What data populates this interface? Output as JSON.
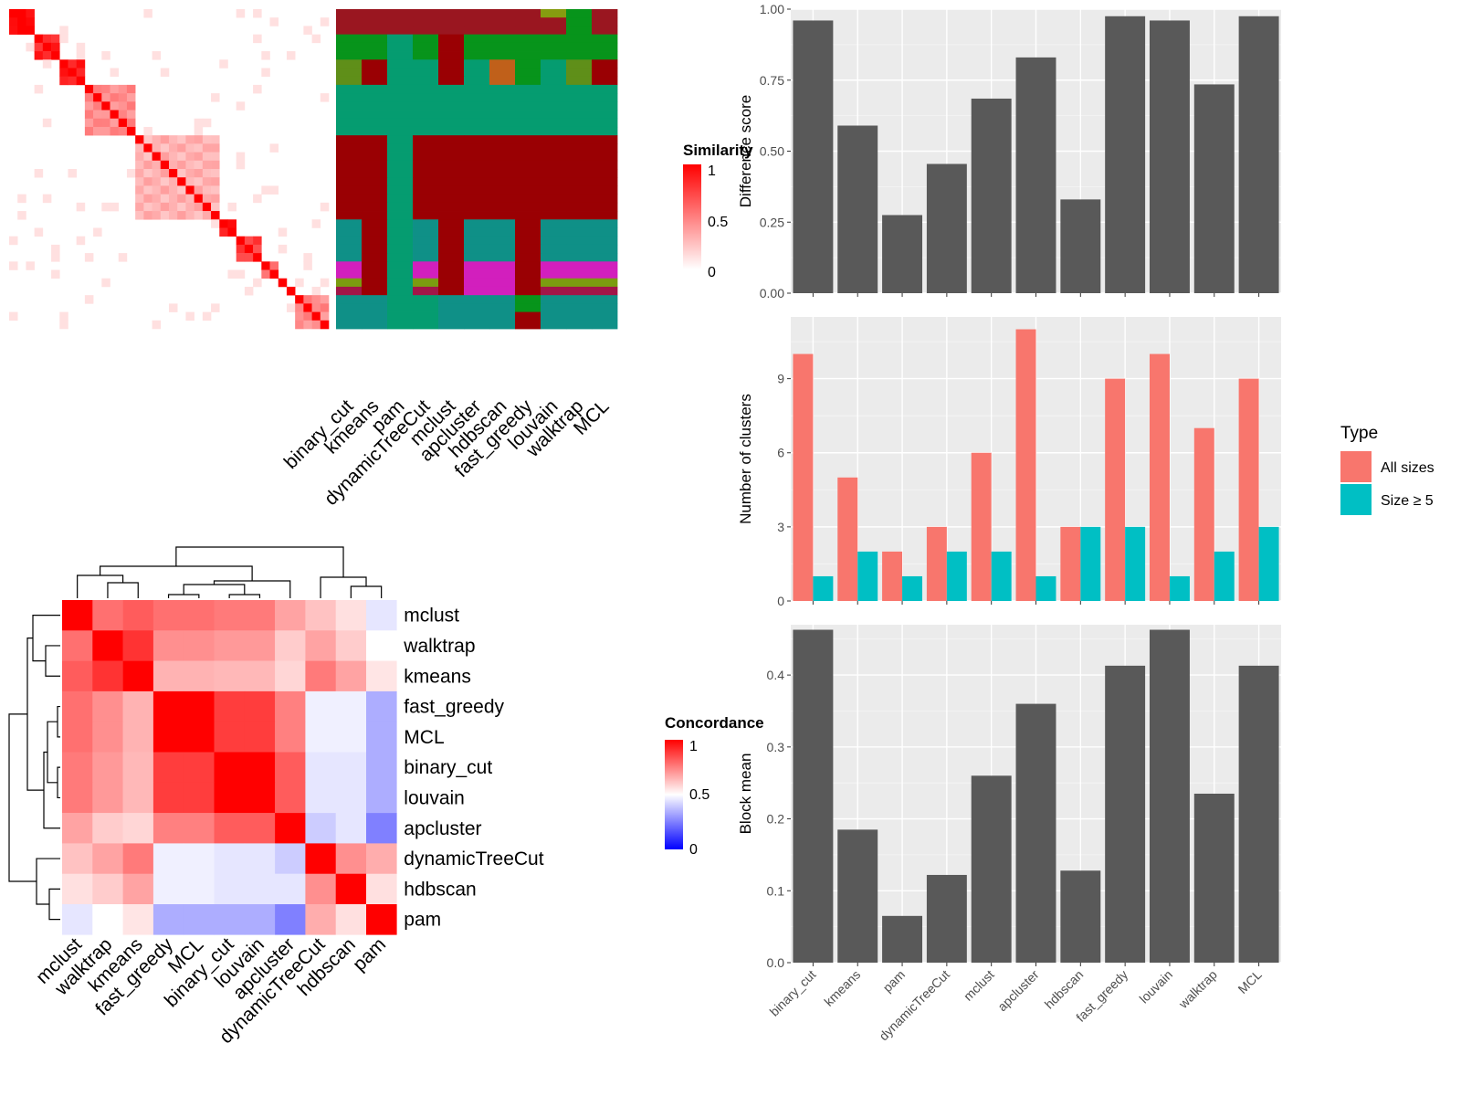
{
  "colors": {
    "panel_bg": "#ebebeb",
    "grid": "#ffffff",
    "bar_dark": "#595959",
    "all_sizes": "#f8766d",
    "size_ge5": "#00bfc4",
    "sim_high": "#ff0000",
    "sim_low": "#ffffff",
    "conc_high": "#ff0000",
    "conc_mid": "#ffffff",
    "conc_low": "#0000ff"
  },
  "chart_data": [
    {
      "id": "similarity_heatmap",
      "type": "heatmap",
      "columns": [
        "binary_cut",
        "kmeans",
        "pam",
        "dynamicTreeCut",
        "mclust",
        "apcluster",
        "hdbscan",
        "fast_greedy",
        "louvain",
        "walktrap",
        "MCL"
      ],
      "legend": {
        "title": "Similarity",
        "ticks": [
          "1",
          "0.5",
          "0"
        ],
        "range": [
          0,
          1
        ]
      },
      "block_sizes": [
        3,
        3,
        3,
        6,
        10,
        2,
        3,
        2,
        1,
        1,
        4
      ],
      "within_block_similarity": [
        0.95,
        0.85,
        0.9,
        0.45,
        0.3,
        0.9,
        0.75,
        0.5,
        1,
        1,
        0.45
      ]
    },
    {
      "id": "concordance_heatmap",
      "type": "heatmap",
      "rows": [
        "mclust",
        "walktrap",
        "kmeans",
        "fast_greedy",
        "MCL",
        "binary_cut",
        "louvain",
        "apcluster",
        "dynamicTreeCut",
        "hdbscan",
        "pam"
      ],
      "columns": [
        "mclust",
        "walktrap",
        "kmeans",
        "fast_greedy",
        "MCL",
        "binary_cut",
        "louvain",
        "apcluster",
        "dynamicTreeCut",
        "hdbscan",
        "pam"
      ],
      "legend": {
        "title": "Concordance",
        "ticks": [
          "1",
          "0.5",
          "0"
        ],
        "range": [
          0,
          1
        ]
      },
      "values": [
        [
          1.0,
          0.78,
          0.82,
          0.78,
          0.78,
          0.76,
          0.76,
          0.68,
          0.62,
          0.56,
          0.45
        ],
        [
          0.78,
          1.0,
          0.9,
          0.72,
          0.72,
          0.7,
          0.7,
          0.6,
          0.68,
          0.6,
          0.5
        ],
        [
          0.82,
          0.9,
          1.0,
          0.65,
          0.65,
          0.64,
          0.64,
          0.58,
          0.76,
          0.68,
          0.55
        ],
        [
          0.78,
          0.72,
          0.65,
          1.0,
          1.0,
          0.88,
          0.88,
          0.75,
          0.47,
          0.47,
          0.34
        ],
        [
          0.78,
          0.72,
          0.65,
          1.0,
          1.0,
          0.88,
          0.88,
          0.75,
          0.47,
          0.47,
          0.34
        ],
        [
          0.76,
          0.7,
          0.64,
          0.88,
          0.88,
          1.0,
          1.0,
          0.82,
          0.45,
          0.45,
          0.34
        ],
        [
          0.76,
          0.7,
          0.64,
          0.88,
          0.88,
          1.0,
          1.0,
          0.82,
          0.45,
          0.45,
          0.34
        ],
        [
          0.68,
          0.6,
          0.58,
          0.75,
          0.75,
          0.82,
          0.82,
          1.0,
          0.4,
          0.45,
          0.25
        ],
        [
          0.62,
          0.68,
          0.76,
          0.47,
          0.47,
          0.45,
          0.45,
          0.4,
          1.0,
          0.72,
          0.66
        ],
        [
          0.56,
          0.6,
          0.68,
          0.47,
          0.47,
          0.45,
          0.45,
          0.45,
          0.72,
          1.0,
          0.56
        ],
        [
          0.45,
          0.5,
          0.55,
          0.34,
          0.34,
          0.34,
          0.34,
          0.25,
          0.66,
          0.56,
          1.0
        ]
      ]
    },
    {
      "id": "difference_score",
      "type": "bar",
      "categories": [
        "binary_cut",
        "kmeans",
        "pam",
        "dynamicTreeCut",
        "mclust",
        "apcluster",
        "hdbscan",
        "fast_greedy",
        "louvain",
        "walktrap",
        "MCL"
      ],
      "values": [
        0.96,
        0.59,
        0.275,
        0.455,
        0.685,
        0.83,
        0.33,
        0.975,
        0.96,
        0.735,
        0.975
      ],
      "ylabel": "Difference score",
      "ylim": [
        0,
        1.0
      ],
      "yticks": [
        "0.00",
        "0.25",
        "0.50",
        "0.75",
        "1.00"
      ]
    },
    {
      "id": "number_of_clusters",
      "type": "bar",
      "categories": [
        "binary_cut",
        "kmeans",
        "pam",
        "dynamicTreeCut",
        "mclust",
        "apcluster",
        "hdbscan",
        "fast_greedy",
        "louvain",
        "walktrap",
        "MCL"
      ],
      "series": [
        {
          "name": "All sizes",
          "values": [
            10,
            5,
            2,
            3,
            6,
            11,
            3,
            9,
            10,
            7,
            9
          ]
        },
        {
          "name": "Size ≥ 5",
          "values": [
            1,
            2,
            1,
            2,
            2,
            1,
            3,
            3,
            1,
            2,
            3
          ]
        }
      ],
      "ylabel": "Number of clusters",
      "ylim": [
        0,
        11.5
      ],
      "yticks": [
        "0",
        "3",
        "6",
        "9"
      ],
      "legend": {
        "title": "Type",
        "position": "right"
      }
    },
    {
      "id": "block_mean",
      "type": "bar",
      "categories": [
        "binary_cut",
        "kmeans",
        "pam",
        "dynamicTreeCut",
        "mclust",
        "apcluster",
        "hdbscan",
        "fast_greedy",
        "louvain",
        "walktrap",
        "MCL"
      ],
      "values": [
        0.463,
        0.185,
        0.065,
        0.122,
        0.26,
        0.36,
        0.128,
        0.413,
        0.463,
        0.235,
        0.413
      ],
      "ylabel": "Block mean",
      "ylim": [
        0,
        0.47
      ],
      "yticks": [
        "0.0",
        "0.1",
        "0.2",
        "0.3",
        "0.4"
      ]
    }
  ]
}
